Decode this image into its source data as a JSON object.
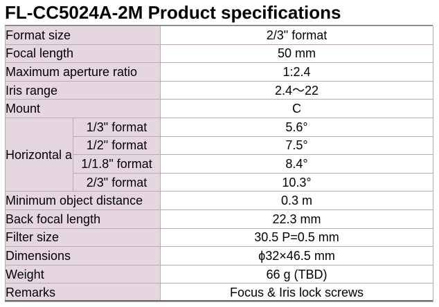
{
  "title": "FL-CC5024A-2M Product specifications",
  "rows_top": [
    {
      "label": "Format size",
      "value": "2/3\" format"
    },
    {
      "label": "Focal length",
      "value": "50 mm"
    },
    {
      "label": "Maximum aperture ratio",
      "value": "1:2.4"
    },
    {
      "label": "Iris range",
      "value": "2.4～22"
    },
    {
      "label": "Mount",
      "value": "C"
    }
  ],
  "angle_group": {
    "label": "Horizontal angle of view",
    "rows": [
      {
        "format": "1/3\" format",
        "value": "5.6°"
      },
      {
        "format": "1/2\" format",
        "value": "7.5°"
      },
      {
        "format": "1/1.8\" format",
        "value": "8.4°"
      },
      {
        "format": "2/3\" format",
        "value": "10.3°"
      }
    ]
  },
  "rows_bottom": [
    {
      "label": "Minimum object distance",
      "value": "0.3 m"
    },
    {
      "label": "Back focal length",
      "value": "22.3 mm"
    },
    {
      "label": "Filter size",
      "value": "30.5 P=0.5 mm"
    },
    {
      "label": "Dimensions",
      "value": "ϕ32×46.5 mm"
    },
    {
      "label": "Weight",
      "value": "66 g (TBD)"
    },
    {
      "label": "Remarks",
      "value": "Focus & Iris lock screws"
    }
  ]
}
